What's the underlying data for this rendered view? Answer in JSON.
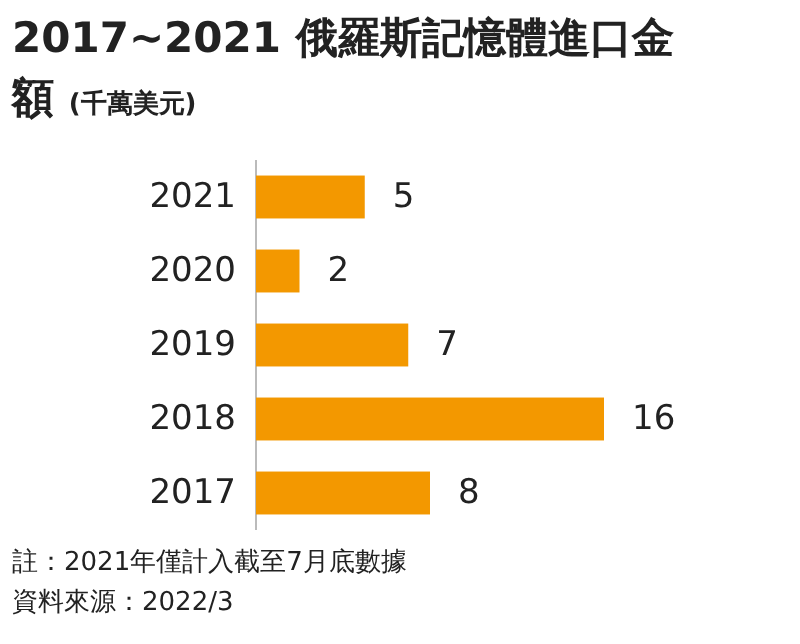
{
  "chart_data": {
    "type": "bar",
    "orientation": "horizontal",
    "title": "2017~2021 俄羅斯記憶體進口金額",
    "subtitle": "(千萬美元)",
    "categories": [
      "2021",
      "2020",
      "2019",
      "2018",
      "2017"
    ],
    "values": [
      5,
      2,
      7,
      16,
      8
    ],
    "color": "#f39800",
    "data_labels": true,
    "annotations": [
      "註：2021年僅計入截至7月底數據",
      "資料來源：2022/3"
    ]
  }
}
